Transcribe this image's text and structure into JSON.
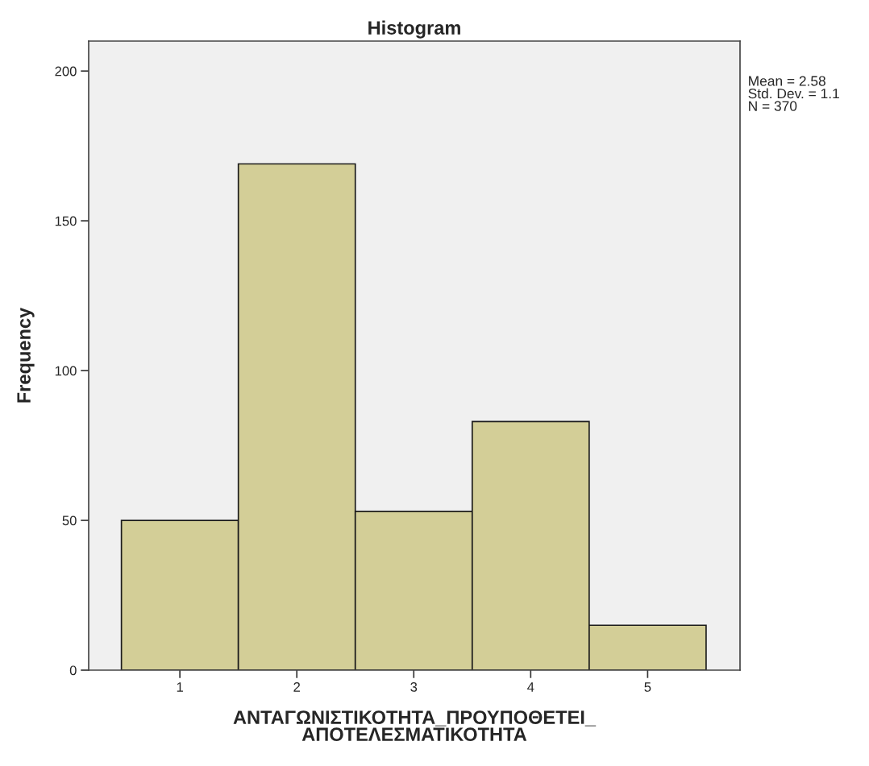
{
  "chart_data": {
    "type": "histogram",
    "title": "Histogram",
    "xlabel": "ΑΝΤΑΓΩΝΙΣΤΙΚΟΤΗΤΑ_ΠΡΟΥΠΟΘΕΤΕΙ_\nΑΠΟΤΕΛΕΣΜΑΤΙΚΟΤΗΤΑ",
    "ylabel": "Frequency",
    "bins": [
      0.5,
      1.5,
      2.5,
      3.5,
      4.5,
      5.5
    ],
    "values": [
      50,
      169,
      53,
      83,
      15
    ],
    "color": "#d3ce97",
    "xlim": [
      0.22,
      5.79
    ],
    "xticks": [
      1,
      2,
      3,
      4,
      5
    ],
    "ylim": [
      0,
      210
    ],
    "yticks": [
      0,
      50,
      100,
      150,
      200
    ],
    "grid": false,
    "annotations": [
      "Mean = 2.58\nStd. Dev. = 1.1\nN = 370"
    ]
  }
}
